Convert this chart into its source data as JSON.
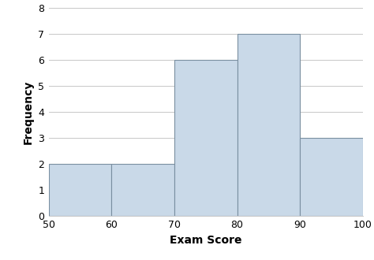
{
  "bin_edges": [
    50,
    60,
    70,
    80,
    90,
    100
  ],
  "frequencies": [
    2,
    2,
    6,
    7,
    3
  ],
  "bar_facecolor": "#c9d9e8",
  "bar_edgecolor": "#7a8fa0",
  "xlabel": "Exam Score",
  "ylabel": "Frequency",
  "xlim": [
    50,
    100
  ],
  "ylim": [
    0,
    8
  ],
  "xticks": [
    50,
    60,
    70,
    80,
    90,
    100
  ],
  "yticks": [
    0,
    1,
    2,
    3,
    4,
    5,
    6,
    7,
    8
  ],
  "background_color": "#ffffff",
  "grid_color": "#c8c8c8",
  "xlabel_fontsize": 10,
  "ylabel_fontsize": 10,
  "tick_fontsize": 9,
  "bar_linewidth": 0.8,
  "figsize": [
    4.74,
    3.3
  ],
  "dpi": 100
}
